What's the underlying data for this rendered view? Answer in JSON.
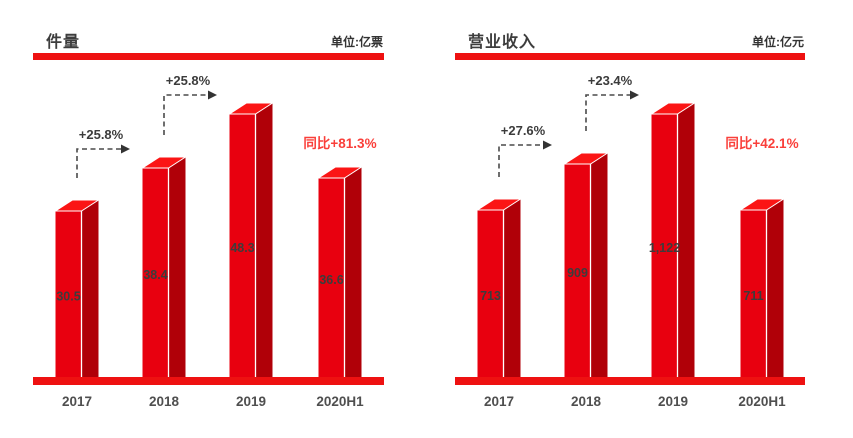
{
  "colors": {
    "bar_front": "#e8000f",
    "bar_side": "#b00008",
    "bar_top": "#fb1515",
    "bar_edge": "#ffffff",
    "axis_red": "#ee1111",
    "yoy_red": "#fa3f3a",
    "title_text": "#3d3d3d",
    "unit_text": "#333333",
    "year_label": "#4f4f4f",
    "value_label": "#3c3c3c",
    "annotation_text": "#3c3c3c",
    "dash_line": "#4a4a4a",
    "arrow_head": "#333333"
  },
  "chart_data": [
    {
      "type": "bar",
      "title": "件量",
      "unit_label": "单位:亿票",
      "categories": [
        "2017",
        "2018",
        "2019",
        "2020H1"
      ],
      "values": [
        30.5,
        38.4,
        48.3,
        36.6
      ],
      "value_labels": [
        "30.5",
        "38.4",
        "48.3",
        "36.6"
      ],
      "growth_annotations": [
        {
          "from_index": 0,
          "to_index": 1,
          "label": "+25.8%"
        },
        {
          "from_index": 1,
          "to_index": 2,
          "label": "+25.8%"
        }
      ],
      "yoy_label": "同比+81.3%",
      "ylim": [
        0,
        48.3
      ],
      "grid": false,
      "legend": "none",
      "bar_style": "3d-red"
    },
    {
      "type": "bar",
      "title": "营业收入",
      "unit_label": "单位:亿元",
      "categories": [
        "2017",
        "2018",
        "2019",
        "2020H1"
      ],
      "values": [
        713,
        909,
        1122,
        711
      ],
      "value_labels": [
        "713",
        "909",
        "1,122",
        "711"
      ],
      "growth_annotations": [
        {
          "from_index": 0,
          "to_index": 1,
          "label": "+27.6%"
        },
        {
          "from_index": 1,
          "to_index": 2,
          "label": "+23.4%"
        }
      ],
      "yoy_label": "同比+42.1%",
      "ylim": [
        0,
        1122
      ],
      "grid": false,
      "legend": "none",
      "bar_style": "3d-red"
    }
  ]
}
